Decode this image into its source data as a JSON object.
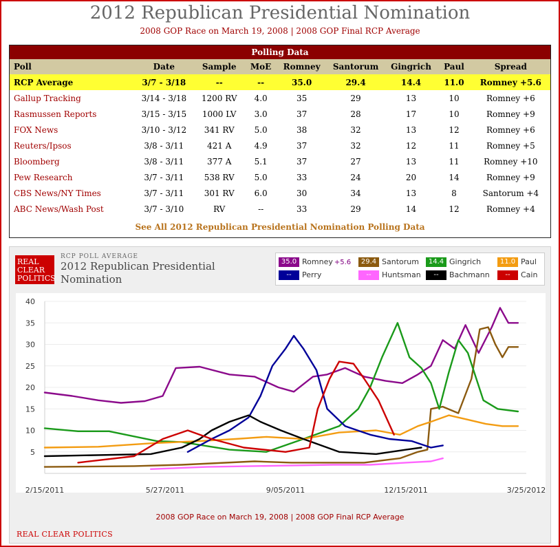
{
  "page": {
    "title": "2012 Republican Presidential Nomination",
    "subtitle": "2008 GOP Race on March 19, 2008 | 2008 GOP Final RCP Average"
  },
  "polling_table": {
    "caption": "Polling Data",
    "columns": [
      "Poll",
      "Date",
      "Sample",
      "MoE",
      "Romney",
      "Santorum",
      "Gingrich",
      "Paul",
      "Spread"
    ],
    "average": [
      "RCP Average",
      "3/7 - 3/18",
      "--",
      "--",
      "35.0",
      "29.4",
      "14.4",
      "11.0",
      "Romney +5.6"
    ],
    "rows": [
      [
        "Gallup Tracking",
        "3/14 - 3/18",
        "1200 RV",
        "4.0",
        "35",
        "29",
        "13",
        "10",
        "Romney +6"
      ],
      [
        "Rasmussen Reports",
        "3/15 - 3/15",
        "1000 LV",
        "3.0",
        "37",
        "28",
        "17",
        "10",
        "Romney +9"
      ],
      [
        "FOX News",
        "3/10 - 3/12",
        "341 RV",
        "5.0",
        "38",
        "32",
        "13",
        "12",
        "Romney +6"
      ],
      [
        "Reuters/Ipsos",
        "3/8 - 3/11",
        "421 A",
        "4.9",
        "37",
        "32",
        "12",
        "11",
        "Romney +5"
      ],
      [
        "Bloomberg",
        "3/8 - 3/11",
        "377 A",
        "5.1",
        "37",
        "27",
        "13",
        "11",
        "Romney +10"
      ],
      [
        "Pew Research",
        "3/7 - 3/11",
        "538 RV",
        "5.0",
        "33",
        "24",
        "20",
        "14",
        "Romney +9"
      ],
      [
        "CBS News/NY Times",
        "3/7 - 3/11",
        "301 RV",
        "6.0",
        "30",
        "34",
        "13",
        "8",
        "Santorum +4"
      ],
      [
        "ABC News/Wash Post",
        "3/7 - 3/10",
        "RV",
        "--",
        "33",
        "29",
        "14",
        "12",
        "Romney +4"
      ]
    ],
    "see_all": "See All 2012 Republican Presidential Nomination Polling Data"
  },
  "chart_panel": {
    "logo_lines": [
      "REAL",
      "CLEAR",
      "POLITICS"
    ],
    "kicker": "RCP POLL AVERAGE",
    "title": "2012 Republican Presidential Nomination",
    "footnote": "2008 GOP Race on March 19, 2008 | 2008 GOP Final RCP Average",
    "source": "REAL CLEAR POLITICS"
  },
  "legend": [
    {
      "value": "35.0",
      "name": "Romney",
      "spread": "+5.6",
      "color": "#8b0a8b"
    },
    {
      "value": "29.4",
      "name": "Santorum",
      "spread": "",
      "color": "#8b5a0f"
    },
    {
      "value": "14.4",
      "name": "Gingrich",
      "spread": "",
      "color": "#1a9a1a"
    },
    {
      "value": "11.0",
      "name": "Paul",
      "spread": "",
      "color": "#f39c12"
    },
    {
      "value": "--",
      "name": "Perry",
      "spread": "",
      "color": "#000099"
    },
    {
      "value": "--",
      "name": "Huntsman",
      "spread": "",
      "color": "#ff66ff"
    },
    {
      "value": "--",
      "name": "Bachmann",
      "spread": "",
      "color": "#000000"
    },
    {
      "value": "--",
      "name": "Cain",
      "spread": "",
      "color": "#cc0000"
    }
  ],
  "chart_data": {
    "type": "line",
    "x_start": "2011-02-15",
    "x_end": "2012-03-25",
    "x_ticks": [
      "2/15/2011",
      "5/27/2011",
      "9/05/2011",
      "12/15/2011",
      "3/25/2012"
    ],
    "y_ticks": [
      5,
      10,
      15,
      20,
      25,
      30,
      35,
      40
    ],
    "ylim": [
      0,
      40
    ],
    "grid": true,
    "series": [
      {
        "name": "Romney",
        "color": "#8b0a8b",
        "points": [
          [
            "2011-02-15",
            18.8
          ],
          [
            "2011-03-10",
            18.0
          ],
          [
            "2011-04-01",
            17.0
          ],
          [
            "2011-04-20",
            16.4
          ],
          [
            "2011-05-10",
            16.8
          ],
          [
            "2011-05-25",
            18.0
          ],
          [
            "2011-06-05",
            24.5
          ],
          [
            "2011-06-25",
            24.8
          ],
          [
            "2011-07-20",
            23.0
          ],
          [
            "2011-08-10",
            22.5
          ],
          [
            "2011-08-30",
            20.0
          ],
          [
            "2011-09-12",
            19.0
          ],
          [
            "2011-09-28",
            22.5
          ],
          [
            "2011-10-10",
            23.0
          ],
          [
            "2011-10-25",
            24.5
          ],
          [
            "2011-11-10",
            22.5
          ],
          [
            "2011-11-28",
            21.5
          ],
          [
            "2011-12-12",
            21.0
          ],
          [
            "2011-12-25",
            23.0
          ],
          [
            "2012-01-05",
            25.0
          ],
          [
            "2012-01-15",
            31.0
          ],
          [
            "2012-01-25",
            29.0
          ],
          [
            "2012-02-03",
            34.5
          ],
          [
            "2012-02-14",
            28.0
          ],
          [
            "2012-02-25",
            34.0
          ],
          [
            "2012-03-03",
            38.5
          ],
          [
            "2012-03-10",
            35.0
          ],
          [
            "2012-03-18",
            35.0
          ]
        ]
      },
      {
        "name": "Santorum",
        "color": "#8b5a0f",
        "points": [
          [
            "2011-02-15",
            1.5
          ],
          [
            "2011-05-01",
            1.7
          ],
          [
            "2011-06-10",
            2.0
          ],
          [
            "2011-08-10",
            2.8
          ],
          [
            "2011-09-10",
            2.5
          ],
          [
            "2011-10-10",
            2.5
          ],
          [
            "2011-11-10",
            2.5
          ],
          [
            "2011-12-10",
            3.5
          ],
          [
            "2011-12-25",
            5.0
          ],
          [
            "2012-01-02",
            5.5
          ],
          [
            "2012-01-05",
            15.0
          ],
          [
            "2012-01-15",
            15.5
          ],
          [
            "2012-01-28",
            14.0
          ],
          [
            "2012-02-08",
            22.0
          ],
          [
            "2012-02-15",
            33.5
          ],
          [
            "2012-02-22",
            34.0
          ],
          [
            "2012-02-28",
            30.0
          ],
          [
            "2012-03-05",
            27.0
          ],
          [
            "2012-03-10",
            29.4
          ],
          [
            "2012-03-18",
            29.4
          ]
        ]
      },
      {
        "name": "Gingrich",
        "color": "#1a9a1a",
        "points": [
          [
            "2011-02-15",
            10.5
          ],
          [
            "2011-03-15",
            9.8
          ],
          [
            "2011-04-10",
            9.8
          ],
          [
            "2011-05-20",
            7.5
          ],
          [
            "2011-06-10",
            7.3
          ],
          [
            "2011-07-20",
            5.5
          ],
          [
            "2011-08-20",
            5.0
          ],
          [
            "2011-09-20",
            8.0
          ],
          [
            "2011-10-20",
            11.0
          ],
          [
            "2011-11-05",
            15.0
          ],
          [
            "2011-11-15",
            20.0
          ],
          [
            "2011-11-25",
            27.0
          ],
          [
            "2011-12-08",
            35.0
          ],
          [
            "2011-12-18",
            27.0
          ],
          [
            "2011-12-28",
            24.5
          ],
          [
            "2012-01-05",
            21.0
          ],
          [
            "2012-01-12",
            15.0
          ],
          [
            "2012-01-20",
            23.5
          ],
          [
            "2012-01-28",
            31.0
          ],
          [
            "2012-02-05",
            28.0
          ],
          [
            "2012-02-18",
            17.0
          ],
          [
            "2012-03-01",
            15.0
          ],
          [
            "2012-03-18",
            14.4
          ]
        ]
      },
      {
        "name": "Paul",
        "color": "#f39c12",
        "points": [
          [
            "2011-02-15",
            6.0
          ],
          [
            "2011-04-01",
            6.2
          ],
          [
            "2011-05-15",
            7.0
          ],
          [
            "2011-06-25",
            7.5
          ],
          [
            "2011-07-25",
            8.0
          ],
          [
            "2011-08-20",
            8.5
          ],
          [
            "2011-09-20",
            8.0
          ],
          [
            "2011-10-20",
            9.5
          ],
          [
            "2011-11-20",
            10.0
          ],
          [
            "2011-12-10",
            9.0
          ],
          [
            "2011-12-25",
            11.0
          ],
          [
            "2012-01-05",
            12.0
          ],
          [
            "2012-01-20",
            13.5
          ],
          [
            "2012-02-05",
            12.5
          ],
          [
            "2012-02-20",
            11.5
          ],
          [
            "2012-03-05",
            11.0
          ],
          [
            "2012-03-18",
            11.0
          ]
        ]
      },
      {
        "name": "Perry",
        "color": "#000099",
        "points": [
          [
            "2011-06-15",
            5.0
          ],
          [
            "2011-07-05",
            8.0
          ],
          [
            "2011-07-20",
            10.0
          ],
          [
            "2011-08-05",
            13.0
          ],
          [
            "2011-08-15",
            18.0
          ],
          [
            "2011-08-25",
            25.0
          ],
          [
            "2011-09-05",
            29.0
          ],
          [
            "2011-09-12",
            32.0
          ],
          [
            "2011-09-20",
            29.0
          ],
          [
            "2011-10-01",
            24.0
          ],
          [
            "2011-10-10",
            15.0
          ],
          [
            "2011-10-25",
            11.0
          ],
          [
            "2011-11-15",
            9.0
          ],
          [
            "2011-12-01",
            8.0
          ],
          [
            "2011-12-20",
            7.5
          ],
          [
            "2012-01-05",
            6.0
          ],
          [
            "2012-01-15",
            6.5
          ]
        ]
      },
      {
        "name": "Huntsman",
        "color": "#ff66ff",
        "points": [
          [
            "2011-05-15",
            1.0
          ],
          [
            "2011-07-01",
            1.5
          ],
          [
            "2011-09-01",
            1.8
          ],
          [
            "2011-10-15",
            2.0
          ],
          [
            "2011-11-15",
            2.0
          ],
          [
            "2011-12-15",
            2.5
          ],
          [
            "2012-01-05",
            2.8
          ],
          [
            "2012-01-15",
            3.5
          ]
        ]
      },
      {
        "name": "Bachmann",
        "color": "#000000",
        "points": [
          [
            "2011-02-15",
            4.0
          ],
          [
            "2011-05-15",
            4.5
          ],
          [
            "2011-06-10",
            6.0
          ],
          [
            "2011-06-25",
            8.0
          ],
          [
            "2011-07-05",
            10.0
          ],
          [
            "2011-07-20",
            12.0
          ],
          [
            "2011-08-05",
            13.5
          ],
          [
            "2011-08-15",
            12.0
          ],
          [
            "2011-09-01",
            10.0
          ],
          [
            "2011-09-20",
            8.0
          ],
          [
            "2011-10-20",
            5.0
          ],
          [
            "2011-11-20",
            4.5
          ],
          [
            "2011-12-15",
            5.5
          ],
          [
            "2011-12-28",
            6.0
          ]
        ]
      },
      {
        "name": "Cain",
        "color": "#cc0000",
        "points": [
          [
            "2011-03-15",
            2.5
          ],
          [
            "2011-05-01",
            4.0
          ],
          [
            "2011-05-25",
            8.0
          ],
          [
            "2011-06-15",
            10.0
          ],
          [
            "2011-07-05",
            8.0
          ],
          [
            "2011-08-01",
            6.0
          ],
          [
            "2011-09-05",
            5.0
          ],
          [
            "2011-09-25",
            6.0
          ],
          [
            "2011-10-02",
            15.0
          ],
          [
            "2011-10-12",
            22.0
          ],
          [
            "2011-10-20",
            26.0
          ],
          [
            "2011-11-01",
            25.5
          ],
          [
            "2011-11-10",
            22.0
          ],
          [
            "2011-11-22",
            17.0
          ],
          [
            "2011-12-05",
            9.0
          ]
        ]
      }
    ]
  }
}
